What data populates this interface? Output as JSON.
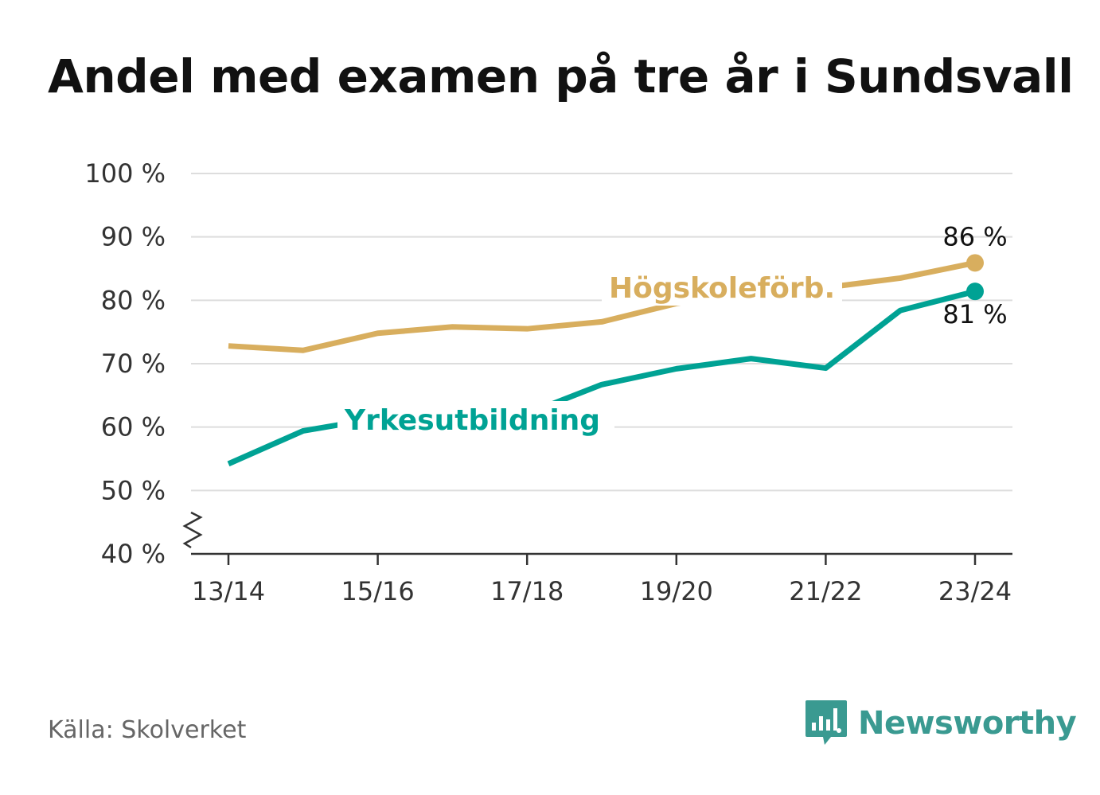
{
  "title": "Andel med examen på tre år i Sundsvall",
  "source": "Källa: Skolverket",
  "brand": {
    "name": "Newsworthy",
    "icon": "bar-chart-speech-bubble-icon",
    "color": "#3a9a91"
  },
  "chart_data": {
    "type": "line",
    "x": [
      "13/14",
      "14/15",
      "15/16",
      "16/17",
      "17/18",
      "18/19",
      "19/20",
      "20/21",
      "21/22",
      "22/23",
      "23/24"
    ],
    "x_tick_labels": [
      "13/14",
      "15/16",
      "17/18",
      "19/20",
      "21/22",
      "23/24"
    ],
    "ylim": [
      40,
      100
    ],
    "yticks": [
      40,
      50,
      60,
      70,
      80,
      90,
      100
    ],
    "ytick_labels": [
      "40 %",
      "50 %",
      "60 %",
      "70 %",
      "80 %",
      "90 %",
      "100 %"
    ],
    "axis_break": true,
    "grid": true,
    "series": [
      {
        "name": "Högskoleförb.",
        "color": "#d8ae5e",
        "values": [
          72.8,
          72.1,
          74.8,
          75.8,
          75.5,
          76.6,
          79.5,
          81.2,
          82.0,
          83.5,
          85.9
        ],
        "end_label": "86 %"
      },
      {
        "name": "Yrkesutbildning",
        "color": "#00a294",
        "values": [
          54.2,
          59.4,
          61.4,
          62.7,
          62.1,
          66.7,
          69.2,
          70.8,
          69.3,
          78.4,
          81.4
        ],
        "end_label": "81 %"
      }
    ]
  }
}
